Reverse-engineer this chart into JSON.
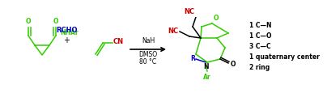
{
  "bg_color": "#ffffff",
  "green_color": "#33cc00",
  "red_color": "#cc0000",
  "blue_color": "#0000cc",
  "black_color": "#000000",
  "conditions_line1": "NaH",
  "conditions_line2": "DMSO",
  "conditions_line3": "80 °C",
  "right_labels": [
    "1 C—N",
    "1 C—O",
    "3 C—C",
    "1 quaternary center",
    "2 ring"
  ]
}
